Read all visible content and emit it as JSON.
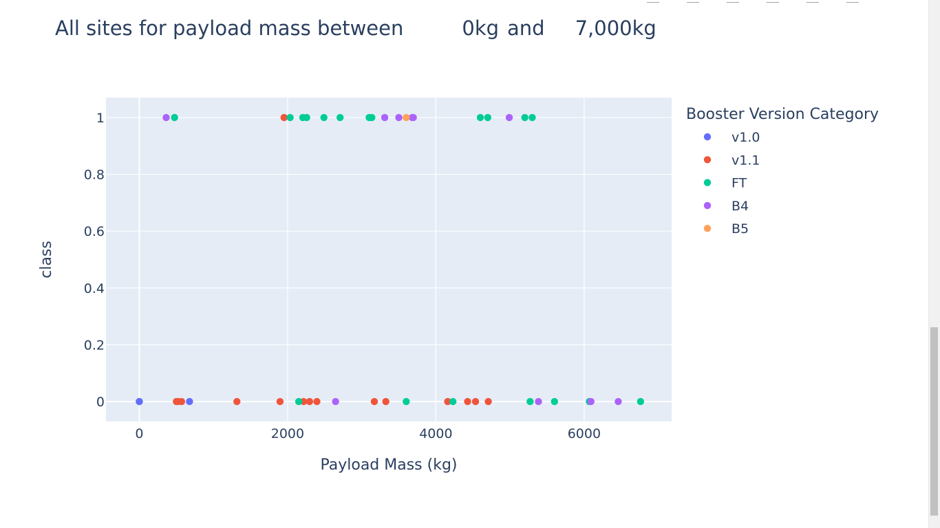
{
  "heading": {
    "prefix": "All sites for payload mass between",
    "low_value": "0kg",
    "joiner": "and",
    "high_value": "7,000kg"
  },
  "colors": {
    "plot_bg": "#e5ecf6",
    "grid": "#ffffff",
    "text": "#2a3f5f",
    "scrollbar_track": "#f1f1f1",
    "scrollbar_thumb": "#c1c1c1"
  },
  "chart_data": {
    "type": "scatter",
    "title": "All sites for payload mass between 0kg and 7,000kg",
    "xlabel": "Payload Mass (kg)",
    "ylabel": "class",
    "xlim": [
      -450,
      7180
    ],
    "ylim": [
      -0.07,
      1.07
    ],
    "x_ticks": [
      0,
      2000,
      4000,
      6000
    ],
    "x_tick_labels": [
      "0",
      "2000",
      "4000",
      "6000"
    ],
    "y_ticks": [
      0,
      0.2,
      0.4,
      0.6,
      0.8,
      1
    ],
    "y_tick_labels": [
      "0",
      "0.2",
      "0.4",
      "0.6",
      "0.8",
      "1"
    ],
    "grid": true,
    "legend_title": "Booster Version Category",
    "legend_position": "right",
    "series": [
      {
        "name": "v1.0",
        "color": "#636efa",
        "points": [
          [
            0,
            0
          ],
          [
            0,
            0
          ],
          [
            677,
            0
          ]
        ]
      },
      {
        "name": "v1.1",
        "color": "#ef553b",
        "points": [
          [
            500,
            0
          ],
          [
            525,
            0
          ],
          [
            570,
            0
          ],
          [
            1316,
            0
          ],
          [
            1898,
            0
          ],
          [
            1952,
            1
          ],
          [
            2216,
            0
          ],
          [
            2296,
            0
          ],
          [
            2395,
            0
          ],
          [
            3170,
            0
          ],
          [
            3325,
            0
          ],
          [
            4159,
            0
          ],
          [
            4428,
            0
          ],
          [
            4535,
            0
          ],
          [
            4707,
            0
          ]
        ]
      },
      {
        "name": "FT",
        "color": "#00cc96",
        "points": [
          [
            475,
            1
          ],
          [
            2034,
            1
          ],
          [
            2150,
            0
          ],
          [
            2205,
            1
          ],
          [
            2257,
            1
          ],
          [
            2490,
            1
          ],
          [
            2708,
            1
          ],
          [
            3100,
            1
          ],
          [
            3136,
            1
          ],
          [
            3600,
            0
          ],
          [
            4230,
            0
          ],
          [
            4600,
            1
          ],
          [
            4700,
            1
          ],
          [
            5200,
            1
          ],
          [
            5271,
            0
          ],
          [
            5300,
            1
          ],
          [
            5600,
            0
          ],
          [
            6070,
            0
          ],
          [
            6761,
            0
          ]
        ]
      },
      {
        "name": "B4",
        "color": "#ab63fa",
        "points": [
          [
            362,
            1
          ],
          [
            2647,
            0
          ],
          [
            3310,
            1
          ],
          [
            3500,
            1
          ],
          [
            3681,
            1
          ],
          [
            3696,
            1
          ],
          [
            4990,
            1
          ],
          [
            5384,
            0
          ],
          [
            6092,
            0
          ],
          [
            6460,
            0
          ]
        ]
      },
      {
        "name": "B5",
        "color": "#ffa15a",
        "points": [
          [
            3600,
            1
          ]
        ]
      }
    ]
  }
}
